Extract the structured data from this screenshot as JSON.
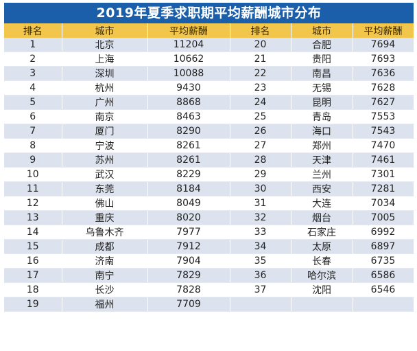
{
  "title": "2019年夏季求职期平均薪酬城市分布",
  "headers": [
    "排名",
    "城市",
    "平均薪酬",
    "排名",
    "城市",
    "平均薪酬"
  ],
  "rows": [
    {
      "l": [
        "1",
        "北京",
        "11204"
      ],
      "r": [
        "20",
        "合肥",
        "7694"
      ]
    },
    {
      "l": [
        "2",
        "上海",
        "10662"
      ],
      "r": [
        "21",
        "贵阳",
        "7693"
      ]
    },
    {
      "l": [
        "3",
        "深圳",
        "10088"
      ],
      "r": [
        "22",
        "南昌",
        "7636"
      ]
    },
    {
      "l": [
        "4",
        "杭州",
        "9430"
      ],
      "r": [
        "23",
        "无锡",
        "7628"
      ]
    },
    {
      "l": [
        "5",
        "广州",
        "8868"
      ],
      "r": [
        "24",
        "昆明",
        "7627"
      ]
    },
    {
      "l": [
        "6",
        "南京",
        "8463"
      ],
      "r": [
        "25",
        "青岛",
        "7553"
      ]
    },
    {
      "l": [
        "7",
        "厦门",
        "8290"
      ],
      "r": [
        "26",
        "海口",
        "7543"
      ]
    },
    {
      "l": [
        "8",
        "宁波",
        "8261"
      ],
      "r": [
        "27",
        "郑州",
        "7470"
      ]
    },
    {
      "l": [
        "9",
        "苏州",
        "8261"
      ],
      "r": [
        "28",
        "天津",
        "7461"
      ]
    },
    {
      "l": [
        "10",
        "武汉",
        "8229"
      ],
      "r": [
        "29",
        "兰州",
        "7301"
      ]
    },
    {
      "l": [
        "11",
        "东莞",
        "8184"
      ],
      "r": [
        "30",
        "西安",
        "7281"
      ]
    },
    {
      "l": [
        "12",
        "佛山",
        "8049"
      ],
      "r": [
        "31",
        "大连",
        "7034"
      ]
    },
    {
      "l": [
        "13",
        "重庆",
        "8020"
      ],
      "r": [
        "32",
        "烟台",
        "7005"
      ]
    },
    {
      "l": [
        "14",
        "乌鲁木齐",
        "7977"
      ],
      "r": [
        "33",
        "石家庄",
        "6992"
      ]
    },
    {
      "l": [
        "15",
        "成都",
        "7912"
      ],
      "r": [
        "34",
        "太原",
        "6897"
      ]
    },
    {
      "l": [
        "16",
        "济南",
        "7904"
      ],
      "r": [
        "35",
        "长春",
        "6735"
      ]
    },
    {
      "l": [
        "17",
        "南宁",
        "7829"
      ],
      "r": [
        "36",
        "哈尔滨",
        "6586"
      ]
    },
    {
      "l": [
        "18",
        "长沙",
        "7828"
      ],
      "r": [
        "37",
        "沈阳",
        "6546"
      ]
    },
    {
      "l": [
        "19",
        "福州",
        "7709"
      ],
      "r": [
        "",
        "",
        ""
      ]
    }
  ]
}
